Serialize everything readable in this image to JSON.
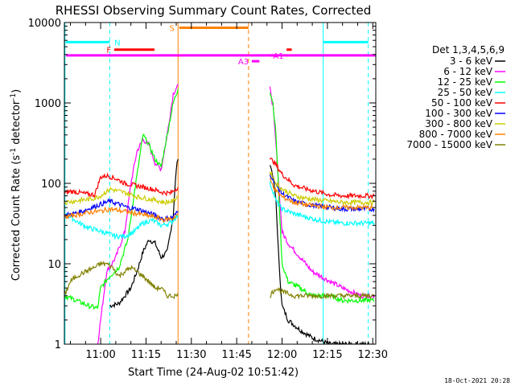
{
  "chart_data": {
    "type": "line",
    "title": "RHESSI Observing Summary Count Rates, Corrected",
    "xlabel": "Start Time (24-Aug-02 10:51:42)",
    "ylabel_main": "Corrected Count Rate (s",
    "ylabel_sup1": "-1",
    "ylabel_mid": " detector",
    "ylabel_sup2": "-1",
    "ylabel_end": ")",
    "yscale": "log",
    "ylim": [
      1,
      10000
    ],
    "xlim_minutes": [
      648,
      751
    ],
    "x_ticks": [
      {
        "minute": 660,
        "label": "11:00"
      },
      {
        "minute": 675,
        "label": "11:15"
      },
      {
        "minute": 690,
        "label": "11:30"
      },
      {
        "minute": 705,
        "label": "11:45"
      },
      {
        "minute": 720,
        "label": "12:00"
      },
      {
        "minute": 735,
        "label": "12:15"
      },
      {
        "minute": 750,
        "label": "12:30"
      }
    ],
    "y_ticks": [
      {
        "value": 1,
        "label": "1"
      },
      {
        "value": 10,
        "label": "10"
      },
      {
        "value": 100,
        "label": "100"
      },
      {
        "value": 1000,
        "label": "1000"
      },
      {
        "value": 10000,
        "label": "10000"
      }
    ],
    "legend_title": "Det 1,3,4,5,6,9",
    "series": [
      {
        "name": "3 - 6 keV",
        "color": "#000000",
        "x": [
          663,
          666,
          668,
          670,
          672,
          674,
          676,
          678,
          680,
          682,
          684,
          685,
          685.6,
          716,
          717,
          718,
          719,
          720,
          722,
          726,
          730,
          736,
          740,
          746,
          750.5
        ],
        "y": [
          3,
          3.2,
          4,
          5,
          8,
          14,
          20,
          18,
          12,
          14,
          40,
          150,
          200,
          180,
          120,
          60,
          10,
          3,
          2,
          1.5,
          1.2,
          1,
          1,
          1,
          1
        ]
      },
      {
        "name": "6 - 12 keV",
        "color": "#ff00ff",
        "x": [
          659,
          662,
          665,
          668,
          670,
          672,
          674,
          676,
          678,
          680,
          682,
          684,
          685.6,
          716,
          717,
          718,
          720,
          722,
          726,
          730,
          736,
          740,
          746,
          750.5
        ],
        "y": [
          1,
          8,
          12,
          25,
          100,
          250,
          350,
          300,
          180,
          150,
          400,
          1300,
          1700,
          1500,
          900,
          300,
          25,
          18,
          12,
          8,
          6,
          5,
          4,
          4
        ]
      },
      {
        "name": "12 - 25 keV",
        "color": "#00ff00",
        "x": [
          648,
          652,
          656,
          659,
          660,
          663,
          666,
          669,
          671,
          674,
          676,
          678,
          680,
          682,
          684,
          685.6,
          716,
          717,
          718,
          720,
          722,
          726,
          730,
          736,
          740,
          746,
          750.5
        ],
        "y": [
          4,
          3.5,
          3,
          2.8,
          5,
          7,
          9,
          20,
          70,
          400,
          300,
          200,
          160,
          400,
          1000,
          1500,
          1400,
          1000,
          400,
          10,
          6,
          5,
          4,
          4,
          3.5,
          3.5,
          3.5
        ]
      },
      {
        "name": "25 - 50 keV",
        "color": "#00ffff",
        "x": [
          648,
          650,
          653,
          656,
          659,
          662,
          665,
          668,
          671,
          674,
          677,
          680,
          683,
          685.6,
          716,
          717,
          718,
          720,
          724,
          728,
          732,
          736,
          740,
          744,
          750.5
        ],
        "y": [
          42,
          38,
          32,
          28,
          26,
          24,
          22,
          22,
          25,
          32,
          35,
          30,
          32,
          40,
          100,
          80,
          60,
          48,
          42,
          38,
          35,
          33,
          32,
          32,
          32
        ]
      },
      {
        "name": "50 - 100 keV",
        "color": "#ff0000",
        "x": [
          648,
          650,
          652,
          655,
          658,
          660,
          662,
          665,
          668,
          671,
          674,
          677,
          680,
          683,
          685.6,
          716,
          717,
          718,
          720,
          724,
          728,
          732,
          736,
          740,
          744,
          750.5
        ],
        "y": [
          75,
          80,
          78,
          74,
          72,
          120,
          125,
          115,
          100,
          95,
          90,
          85,
          78,
          75,
          90,
          200,
          190,
          170,
          130,
          95,
          85,
          78,
          72,
          70,
          70,
          70
        ]
      },
      {
        "name": "100 - 300 keV",
        "color": "#0000ff",
        "x": [
          648,
          651,
          654,
          657,
          660,
          663,
          666,
          669,
          672,
          675,
          678,
          681,
          684,
          685.6,
          716,
          717,
          718,
          720,
          724,
          728,
          732,
          736,
          740,
          744,
          750.5
        ],
        "y": [
          40,
          42,
          45,
          50,
          55,
          60,
          55,
          50,
          48,
          44,
          40,
          36,
          38,
          45,
          130,
          115,
          95,
          75,
          60,
          55,
          52,
          50,
          48,
          48,
          48
        ]
      },
      {
        "name": "300 - 800 keV",
        "color": "#cccc00",
        "x": [
          648,
          651,
          654,
          657,
          660,
          663,
          666,
          669,
          672,
          675,
          678,
          681,
          684,
          685.6,
          716,
          717,
          718,
          720,
          724,
          728,
          732,
          736,
          740,
          744,
          750.5
        ],
        "y": [
          58,
          60,
          62,
          64,
          70,
          85,
          80,
          75,
          68,
          65,
          62,
          58,
          60,
          70,
          140,
          120,
          100,
          85,
          70,
          65,
          62,
          60,
          58,
          58,
          58
        ]
      },
      {
        "name": "800 - 7000 keV",
        "color": "#ff8000",
        "x": [
          648,
          651,
          654,
          657,
          660,
          663,
          666,
          669,
          672,
          675,
          678,
          681,
          684,
          685.6,
          716,
          717,
          718,
          720,
          724,
          728,
          732,
          736,
          740,
          744,
          750.5
        ],
        "y": [
          38,
          40,
          42,
          44,
          45,
          48,
          46,
          44,
          42,
          40,
          38,
          35,
          37,
          42,
          110,
          95,
          80,
          68,
          58,
          54,
          52,
          50,
          50,
          50,
          50
        ]
      },
      {
        "name": "7000 - 15000 keV",
        "color": "#808000",
        "x": [
          648,
          650,
          652,
          655,
          658,
          660,
          662,
          664,
          666,
          668,
          670,
          672,
          674,
          676,
          678,
          680,
          682,
          684,
          685.6,
          716,
          717,
          718,
          720,
          724,
          728,
          732,
          736,
          740,
          744,
          750.5
        ],
        "y": [
          4,
          6,
          7,
          8,
          9,
          10,
          10,
          9,
          7,
          8,
          9,
          8,
          7,
          6,
          5,
          5,
          4,
          4,
          4,
          4,
          4.5,
          5,
          4.5,
          4,
          4,
          4,
          4,
          4,
          4,
          4
        ]
      }
    ],
    "vertical_lines": [
      {
        "minute": 648.2,
        "color": "#00ffff",
        "style": "solid"
      },
      {
        "minute": 663,
        "color": "#00ffff",
        "style": "dashed"
      },
      {
        "minute": 685.6,
        "color": "#ff8000",
        "style": "solid"
      },
      {
        "minute": 708.9,
        "color": "#ff8000",
        "style": "dashed"
      },
      {
        "minute": 733.6,
        "color": "#00ffff",
        "style": "solid"
      },
      {
        "minute": 748.5,
        "color": "#00ffff",
        "style": "dashed"
      }
    ],
    "flag_bars": [
      {
        "label": "N",
        "color": "#00ffff",
        "y": 5700,
        "segments": [
          [
            648.5,
            663
          ],
          [
            733.6,
            748.5
          ]
        ],
        "label_minute": 664,
        "label_side": "right"
      },
      {
        "label": "F",
        "color": "#ff0000",
        "y": 4600,
        "segments": [
          [
            664.5,
            677.8
          ],
          [
            721.5,
            723.2
          ]
        ],
        "label_minute": 664,
        "label_side": "left"
      },
      {
        "label": "",
        "color": "#ff00ff",
        "y": 3900,
        "segments": [
          [
            648.5,
            751
          ]
        ],
        "label_minute": null,
        "label_side": null
      },
      {
        "label": "S",
        "color": "#ff8000",
        "y": 8600,
        "segments": [
          [
            686,
            708.9
          ]
        ],
        "label_minute": 685,
        "label_side": "left"
      },
      {
        "label": "A3",
        "color": "#ff00ff",
        "y": 3300,
        "segments": [
          [
            710,
            712.5
          ]
        ],
        "label_minute": 709.5,
        "label_side": "left"
      },
      {
        "label": "A1",
        "color": "#ff00ff",
        "y": 3900,
        "segments": [
          [
            716,
            716
          ]
        ],
        "label_minute": 716.5,
        "label_side": "right"
      }
    ]
  },
  "footer": {
    "date": "18-Oct-2021 20:28"
  }
}
